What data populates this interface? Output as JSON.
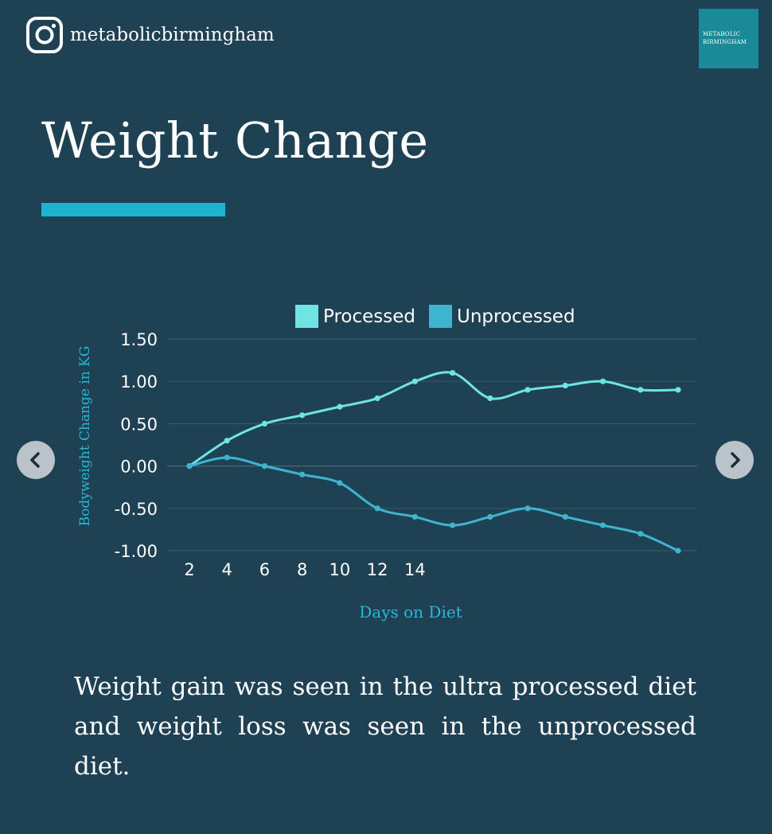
{
  "header": {
    "handle": "metabolicbirmingham",
    "logo_line1": "METABOLIC",
    "logo_line2": "BIRMINGHAM",
    "icon": "instagram-icon"
  },
  "title": "Weight Change",
  "caption": "Weight gain was seen in the ultra processed diet and weight loss was seen in the unprocessed diet.",
  "navigation": {
    "prev_icon": "chevron-left-icon",
    "next_icon": "chevron-right-icon"
  },
  "colors": {
    "background": "#1f4154",
    "accent": "#1bb5cf",
    "processed": "#6ee5e2",
    "unprocessed": "#3eb4cf",
    "axis_label": "#2ab8d2"
  },
  "chart_data": {
    "type": "line",
    "xlabel": "Days on Diet",
    "ylabel": "Bodyweight Change in KG",
    "ylim": [
      -1.0,
      1.5
    ],
    "yticks": [
      "1.50",
      "1.00",
      "0.50",
      "0.00",
      "-0.50",
      "-1.00"
    ],
    "xticks": [
      "2",
      "4",
      "6",
      "8",
      "10",
      "12",
      "14"
    ],
    "x": [
      2,
      4,
      6,
      8,
      10,
      12,
      14,
      16,
      18,
      20,
      22,
      24,
      26,
      28
    ],
    "grid": true,
    "legend_position": "top",
    "series": [
      {
        "name": "Processed",
        "values": [
          0.0,
          0.3,
          0.5,
          0.6,
          0.7,
          0.8,
          1.0,
          1.1,
          0.8,
          0.9,
          0.95,
          1.0,
          0.9,
          0.9
        ]
      },
      {
        "name": "Unprocessed",
        "values": [
          0.0,
          0.1,
          0.0,
          -0.1,
          -0.2,
          -0.5,
          -0.6,
          -0.7,
          -0.6,
          -0.5,
          -0.6,
          -0.7,
          -0.8,
          -1.0
        ]
      }
    ]
  }
}
